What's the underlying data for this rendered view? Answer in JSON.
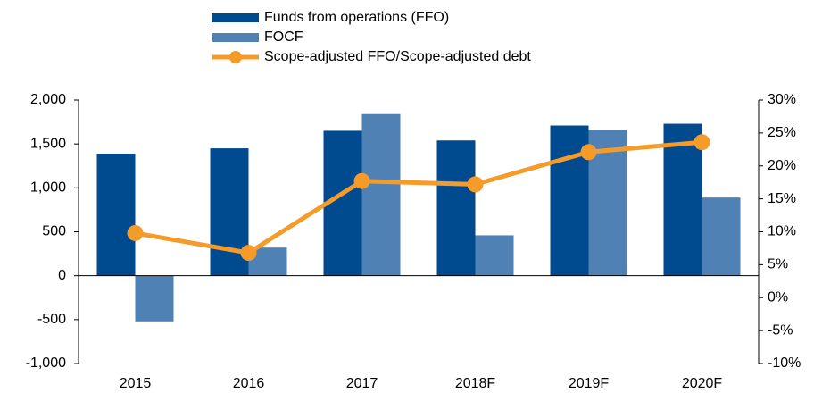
{
  "chart_data": {
    "type": "bar",
    "categories": [
      "2015",
      "2016",
      "2017",
      "2018F",
      "2019F",
      "2020F"
    ],
    "series": [
      {
        "name": "Funds from operations (FFO)",
        "color": "#004a8f",
        "type": "bar",
        "values": [
          1390,
          1450,
          1650,
          1540,
          1710,
          1730
        ]
      },
      {
        "name": "FOCF",
        "color": "#4f81b5",
        "type": "bar",
        "values": [
          -520,
          320,
          1840,
          460,
          1660,
          890
        ]
      },
      {
        "name": "Scope-adjusted FFO/Scope-adjusted debt",
        "color": "#f49b2a",
        "type": "line",
        "axis": "y2",
        "values": [
          9.8,
          6.8,
          17.7,
          17.2,
          22.1,
          23.6
        ]
      }
    ],
    "ylim": [
      -1000,
      2000
    ],
    "yticks": [
      {
        "value": -1000,
        "label": "-1,000"
      },
      -500,
      0,
      500,
      {
        "value": 1000,
        "label": "1,000"
      },
      {
        "value": 1500,
        "label": "1,500"
      },
      {
        "value": 2000,
        "label": "2,000"
      }
    ],
    "y2lim": [
      -10,
      30
    ],
    "y2ticks": [
      {
        "value": -10,
        "label": "-10%"
      },
      {
        "value": -5,
        "label": "-5%"
      },
      {
        "value": 0,
        "label": "0%"
      },
      {
        "value": 5,
        "label": "5%"
      },
      {
        "value": 10,
        "label": "10%"
      },
      {
        "value": 15,
        "label": "15%"
      },
      {
        "value": 20,
        "label": "20%"
      },
      {
        "value": 25,
        "label": "25%"
      },
      {
        "value": 30,
        "label": "30%"
      }
    ],
    "legend": "top"
  }
}
